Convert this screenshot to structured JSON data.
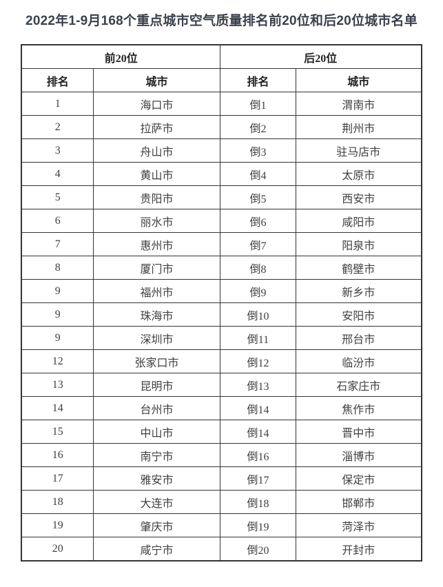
{
  "title": "2022年1-9月168个重点城市空气质量排名前20位和后20位城市名单",
  "colors": {
    "title_text": "#3a414d",
    "table_border": "#333333",
    "header_text": "#222222",
    "cell_text": "#3f3f3f",
    "background": "#ffffff"
  },
  "chart_data": {
    "type": "table",
    "title": "2022年1-9月168个重点城市空气质量排名前20位和后20位城市名单",
    "group_headers": [
      "前20位",
      "后20位"
    ],
    "columns": [
      "排名",
      "城市",
      "排名",
      "城市"
    ],
    "rows": [
      [
        "1",
        "海口市",
        "倒1",
        "渭南市"
      ],
      [
        "2",
        "拉萨市",
        "倒2",
        "荆州市"
      ],
      [
        "3",
        "舟山市",
        "倒3",
        "驻马店市"
      ],
      [
        "4",
        "黄山市",
        "倒4",
        "太原市"
      ],
      [
        "5",
        "贵阳市",
        "倒5",
        "西安市"
      ],
      [
        "6",
        "丽水市",
        "倒6",
        "咸阳市"
      ],
      [
        "7",
        "惠州市",
        "倒7",
        "阳泉市"
      ],
      [
        "8",
        "厦门市",
        "倒8",
        "鹤壁市"
      ],
      [
        "9",
        "福州市",
        "倒9",
        "新乡市"
      ],
      [
        "9",
        "珠海市",
        "倒10",
        "安阳市"
      ],
      [
        "9",
        "深圳市",
        "倒11",
        "邢台市"
      ],
      [
        "12",
        "张家口市",
        "倒12",
        "临汾市"
      ],
      [
        "13",
        "昆明市",
        "倒13",
        "石家庄市"
      ],
      [
        "14",
        "台州市",
        "倒14",
        "焦作市"
      ],
      [
        "15",
        "中山市",
        "倒14",
        "晋中市"
      ],
      [
        "16",
        "南宁市",
        "倒16",
        "淄博市"
      ],
      [
        "17",
        "雅安市",
        "倒17",
        "保定市"
      ],
      [
        "18",
        "大连市",
        "倒18",
        "邯郸市"
      ],
      [
        "19",
        "肇庆市",
        "倒19",
        "菏泽市"
      ],
      [
        "20",
        "咸宁市",
        "倒20",
        "开封市"
      ]
    ]
  }
}
